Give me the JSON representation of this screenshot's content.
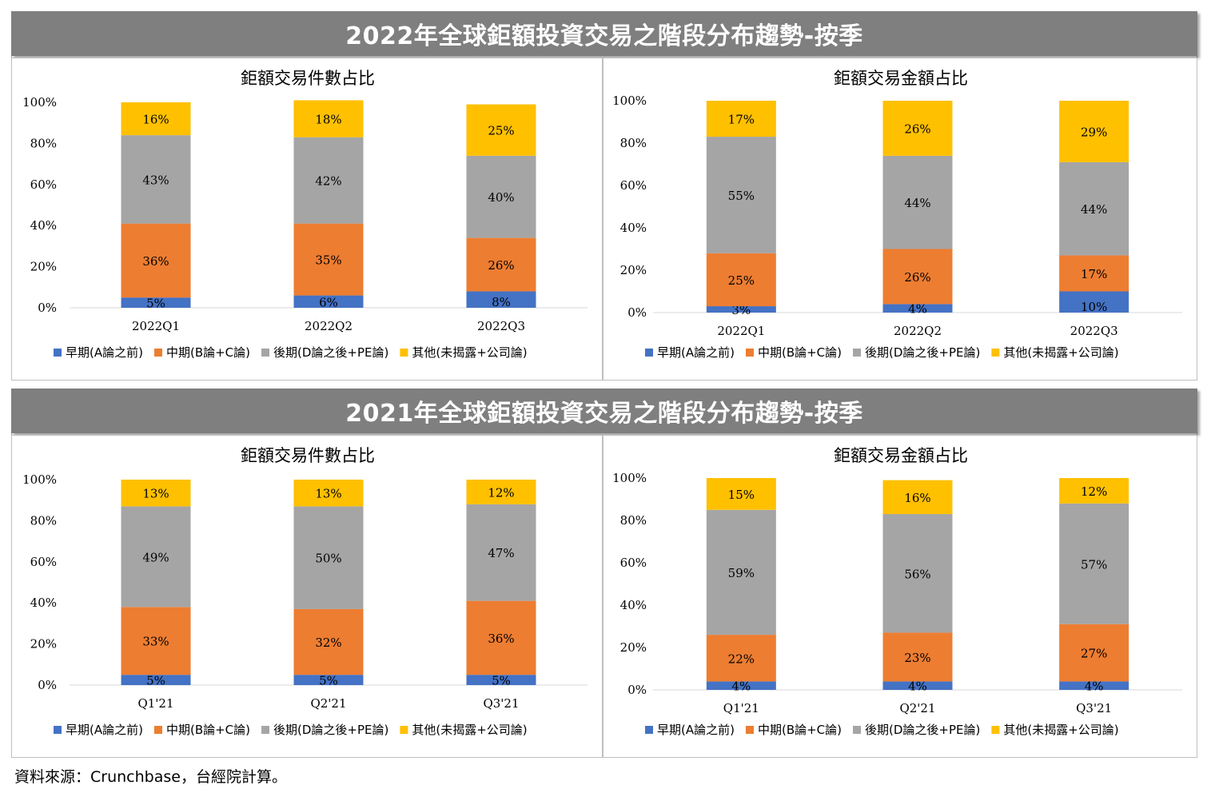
{
  "sections": [
    {
      "banner": "2022年全球鉅額投資交易之階段分布趨勢-按季"
    },
    {
      "banner": "2021年全球鉅額投資交易之階段分布趨勢-按季"
    }
  ],
  "colors": {
    "early": "#4472c4",
    "mid": "#ed7d31",
    "late": "#a5a5a5",
    "other": "#ffc000"
  },
  "source": "資料來源：Crunchbase，台經院計算。",
  "chart_data": [
    {
      "type": "bar",
      "stacked": true,
      "title": "鉅額交易件數占比",
      "categories": [
        "2022Q1",
        "2022Q2",
        "2022Q3"
      ],
      "ylim": [
        0,
        100
      ],
      "yticks": [
        "0%",
        "20%",
        "40%",
        "60%",
        "80%",
        "100%"
      ],
      "legend_position": "bottom",
      "series": [
        {
          "name": "早期(A論之前)",
          "values": [
            5,
            6,
            8
          ],
          "labels": [
            "5%",
            "6%",
            "8%"
          ]
        },
        {
          "name": "中期(B論+C論)",
          "values": [
            36,
            35,
            26
          ],
          "labels": [
            "36%",
            "35%",
            "26%"
          ]
        },
        {
          "name": "後期(D論之後+PE論)",
          "values": [
            43,
            42,
            40
          ],
          "labels": [
            "43%",
            "42%",
            "40%"
          ]
        },
        {
          "name": "其他(未揭露+公司論)",
          "values": [
            16,
            18,
            25
          ],
          "labels": [
            "16%",
            "18%",
            "25%"
          ]
        }
      ]
    },
    {
      "type": "bar",
      "stacked": true,
      "title": "鉅額交易金額占比",
      "categories": [
        "2022Q1",
        "2022Q2",
        "2022Q3"
      ],
      "ylim": [
        0,
        100
      ],
      "yticks": [
        "0%",
        "20%",
        "40%",
        "60%",
        "80%",
        "100%"
      ],
      "legend_position": "bottom",
      "series": [
        {
          "name": "早期(A論之前)",
          "values": [
            3,
            4,
            10
          ],
          "labels": [
            "3%",
            "4%",
            "10%"
          ]
        },
        {
          "name": "中期(B論+C論)",
          "values": [
            25,
            26,
            17
          ],
          "labels": [
            "25%",
            "26%",
            "17%"
          ]
        },
        {
          "name": "後期(D論之後+PE論)",
          "values": [
            55,
            44,
            44
          ],
          "labels": [
            "55%",
            "44%",
            "44%"
          ]
        },
        {
          "name": "其他(未揭露+公司論)",
          "values": [
            17,
            26,
            29
          ],
          "labels": [
            "17%",
            "26%",
            "29%"
          ]
        }
      ]
    },
    {
      "type": "bar",
      "stacked": true,
      "title": "鉅額交易件數占比",
      "categories": [
        "Q1'21",
        "Q2'21",
        "Q3'21"
      ],
      "ylim": [
        0,
        100
      ],
      "yticks": [
        "0%",
        "20%",
        "40%",
        "60%",
        "80%",
        "100%"
      ],
      "legend_position": "bottom",
      "series": [
        {
          "name": "早期(A論之前)",
          "values": [
            5,
            5,
            5
          ],
          "labels": [
            "5%",
            "5%",
            "5%"
          ]
        },
        {
          "name": "中期(B論+C論)",
          "values": [
            33,
            32,
            36
          ],
          "labels": [
            "33%",
            "32%",
            "36%"
          ]
        },
        {
          "name": "後期(D論之後+PE論)",
          "values": [
            49,
            50,
            47
          ],
          "labels": [
            "49%",
            "50%",
            "47%"
          ]
        },
        {
          "name": "其他(未揭露+公司論)",
          "values": [
            13,
            13,
            12
          ],
          "labels": [
            "13%",
            "13%",
            "12%"
          ]
        }
      ]
    },
    {
      "type": "bar",
      "stacked": true,
      "title": "鉅額交易金額占比",
      "categories": [
        "Q1'21",
        "Q2'21",
        "Q3'21"
      ],
      "ylim": [
        0,
        100
      ],
      "yticks": [
        "0%",
        "20%",
        "40%",
        "60%",
        "80%",
        "100%"
      ],
      "legend_position": "bottom",
      "series": [
        {
          "name": "早期(A論之前)",
          "values": [
            4,
            4,
            4
          ],
          "labels": [
            "4%",
            "4%",
            "4%"
          ]
        },
        {
          "name": "中期(B論+C論)",
          "values": [
            22,
            23,
            27
          ],
          "labels": [
            "22%",
            "23%",
            "27%"
          ]
        },
        {
          "name": "後期(D論之後+PE論)",
          "values": [
            59,
            56,
            57
          ],
          "labels": [
            "59%",
            "56%",
            "57%"
          ]
        },
        {
          "name": "其他(未揭露+公司論)",
          "values": [
            15,
            16,
            12
          ],
          "labels": [
            "15%",
            "16%",
            "12%"
          ]
        }
      ]
    }
  ]
}
